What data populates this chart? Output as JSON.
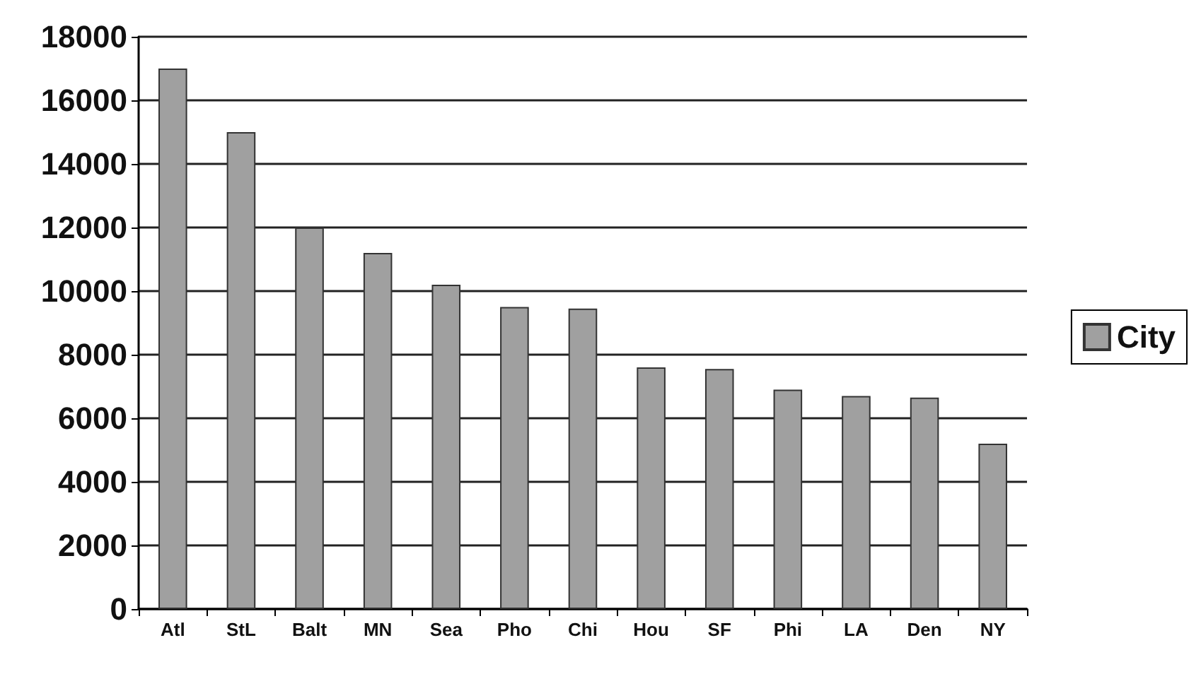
{
  "chart_data": {
    "type": "bar",
    "categories": [
      "Atl",
      "StL",
      "Balt",
      "MN",
      "Sea",
      "Pho",
      "Chi",
      "Hou",
      "SF",
      "Phi",
      "LA",
      "Den",
      "NY"
    ],
    "series": [
      {
        "name": "City",
        "color": "#a0a0a0",
        "values": [
          17000,
          15000,
          12000,
          11200,
          10200,
          9500,
          9450,
          7600,
          7550,
          6900,
          6700,
          6650,
          5200
        ]
      }
    ],
    "ylim": [
      0,
      18000
    ],
    "yticks": [
      0,
      2000,
      4000,
      6000,
      8000,
      10000,
      12000,
      14000,
      16000,
      18000
    ],
    "grid": "y",
    "legend": "right"
  }
}
